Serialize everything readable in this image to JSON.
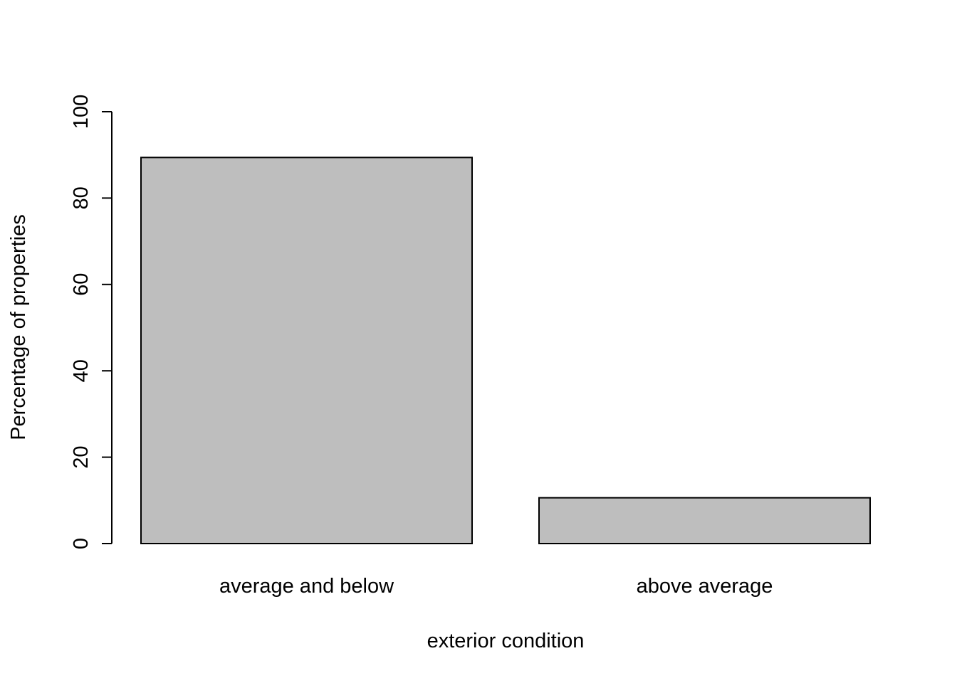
{
  "chart_data": {
    "type": "bar",
    "title": "",
    "xlabel": "exterior condition",
    "ylabel": "Percentage of properties",
    "categories": [
      "average and below",
      "above average"
    ],
    "values": [
      89.4,
      10.6
    ],
    "ylim": [
      0,
      100
    ],
    "yticks": [
      "0",
      "20",
      "40",
      "60",
      "80",
      "100"
    ],
    "grid": false,
    "bar_color": "#bebebe",
    "border_color": "#000000"
  }
}
